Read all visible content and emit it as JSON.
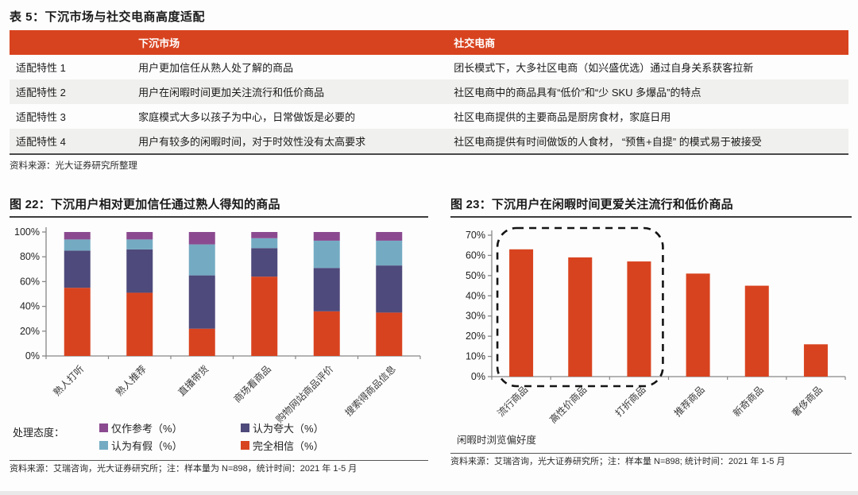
{
  "colors": {
    "table_header_bg": "#d8431f",
    "row_alt_bg": "#f0f0ee",
    "bar_red": "#d8431f",
    "bar_dark_blue": "#4e4a7b",
    "bar_light_blue": "#74abc3",
    "bar_purple": "#8b4a8f",
    "axis": "#888888"
  },
  "table": {
    "title": "表 5：下沉市场与社交电商高度适配",
    "columns": [
      "",
      "下沉市场",
      "社交电商"
    ],
    "rows": [
      [
        "适配特性 1",
        "用户更加信任从熟人处了解的商品",
        "团长模式下，大多社区电商（如兴盛优选）通过自身关系获客拉新"
      ],
      [
        "适配特性 2",
        "用户在闲暇时间更加关注流行和低价商品",
        "社区电商中的商品具有“低价”和“少 SKU 多爆品”的特点"
      ],
      [
        "适配特性 3",
        "家庭模式大多以孩子为中心，日常做饭是必要的",
        "社区电商提供的主要商品是厨房食材，家庭日用"
      ],
      [
        "适配特性 4",
        "用户有较多的闲暇时间，对于时效性没有太高要求",
        "社区电商提供有时间做饭的人食材， “预售+自提” 的模式易于被接受"
      ]
    ],
    "source": "资料来源：光大证券研究所整理"
  },
  "chart_data": [
    {
      "id": "fig22",
      "type": "bar",
      "subtype": "stacked",
      "title": "图 22：下沉用户相对更加信任通过熟人得知的商品",
      "categories": [
        "熟人打听",
        "熟人推荐",
        "直播带货",
        "商场看商品",
        "购物网站商品评价",
        "搜索得商品信息"
      ],
      "series": [
        {
          "name": "完全相信（%）",
          "color": "#d8431f",
          "values": [
            55,
            51,
            22,
            64,
            36,
            35
          ]
        },
        {
          "name": "认为夸大（%）",
          "color": "#4e4a7b",
          "values": [
            30,
            35,
            43,
            23,
            35,
            38
          ]
        },
        {
          "name": "认为有假（%）",
          "color": "#74abc3",
          "values": [
            9,
            8,
            25,
            8,
            22,
            20
          ]
        },
        {
          "name": "仅作参考（%）",
          "color": "#8b4a8f",
          "values": [
            6,
            6,
            10,
            5,
            7,
            7
          ]
        }
      ],
      "ylim": [
        0,
        100
      ],
      "yticks": [
        "0%",
        "20%",
        "40%",
        "60%",
        "80%",
        "100%"
      ],
      "grid": false,
      "legend_caption": "处理态度：",
      "legend_order": [
        "仅作参考（%）",
        "认为有假（%）",
        "认为夸大（%）",
        "完全相信（%）"
      ],
      "legend_position": "bottom",
      "source": "资料来源：艾瑞咨询，光大证券研究所；注：样本量为 N=898，统计时间：2021 年 1-5 月"
    },
    {
      "id": "fig23",
      "type": "bar",
      "title": "图 23：下沉用户在闲暇时间更爱关注流行和低价商品",
      "categories": [
        "流行商品",
        "高性价商品",
        "打折商品",
        "推荐商品",
        "新奇商品",
        "奢侈商品"
      ],
      "values": [
        63,
        59,
        57,
        51,
        45,
        16
      ],
      "bar_color": "#d8431f",
      "ylim": [
        0,
        70
      ],
      "yticks": [
        "0%",
        "10%",
        "20%",
        "30%",
        "40%",
        "50%",
        "60%",
        "70%"
      ],
      "grid": false,
      "highlight": {
        "type": "dashed-rounded-box",
        "bars": [
          0,
          1,
          2
        ]
      },
      "xlabel": "闲暇时浏览偏好度",
      "source": "资料来源：艾瑞咨询，光大证券研究所；注：样本量 N=898; 统计时间：2021 年 1-5 月"
    }
  ]
}
